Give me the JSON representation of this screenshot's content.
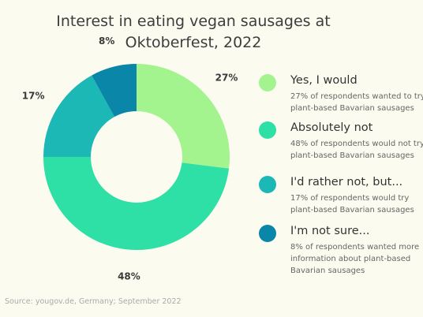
{
  "title_line1": "Interest in eating vegan sausages at",
  "title_line2": "Oktoberfest, 2022",
  "source": "Source: yougov.de, Germany; September 2022",
  "chart_data": {
    "type": "pie",
    "title": "Interest in eating vegan sausages at Oktoberfest, 2022",
    "donut": true,
    "slices": [
      {
        "name": "Yes, I would",
        "value": 27,
        "label": "27%",
        "color": "#a3f48e",
        "description": "27% of respondents wanted to try plant-based Bavarian sausages"
      },
      {
        "name": "Absolutely not",
        "value": 48,
        "label": "48%",
        "color": "#2ee0a6",
        "description": "48% of respondents would not try plant-based Bavarian sausages"
      },
      {
        "name": "I'd rather not, but...",
        "value": 17,
        "label": "17%",
        "color": "#1cb8b5",
        "description": "17%  of respondents would try plant-based Bavarian sausages"
      },
      {
        "name": "I'm not sure...",
        "value": 8,
        "label": "8%",
        "color": "#0a86a8",
        "description": "8% of respondents wanted more information about  plant-based Bavarian sausages"
      }
    ],
    "legend_position": "right"
  }
}
